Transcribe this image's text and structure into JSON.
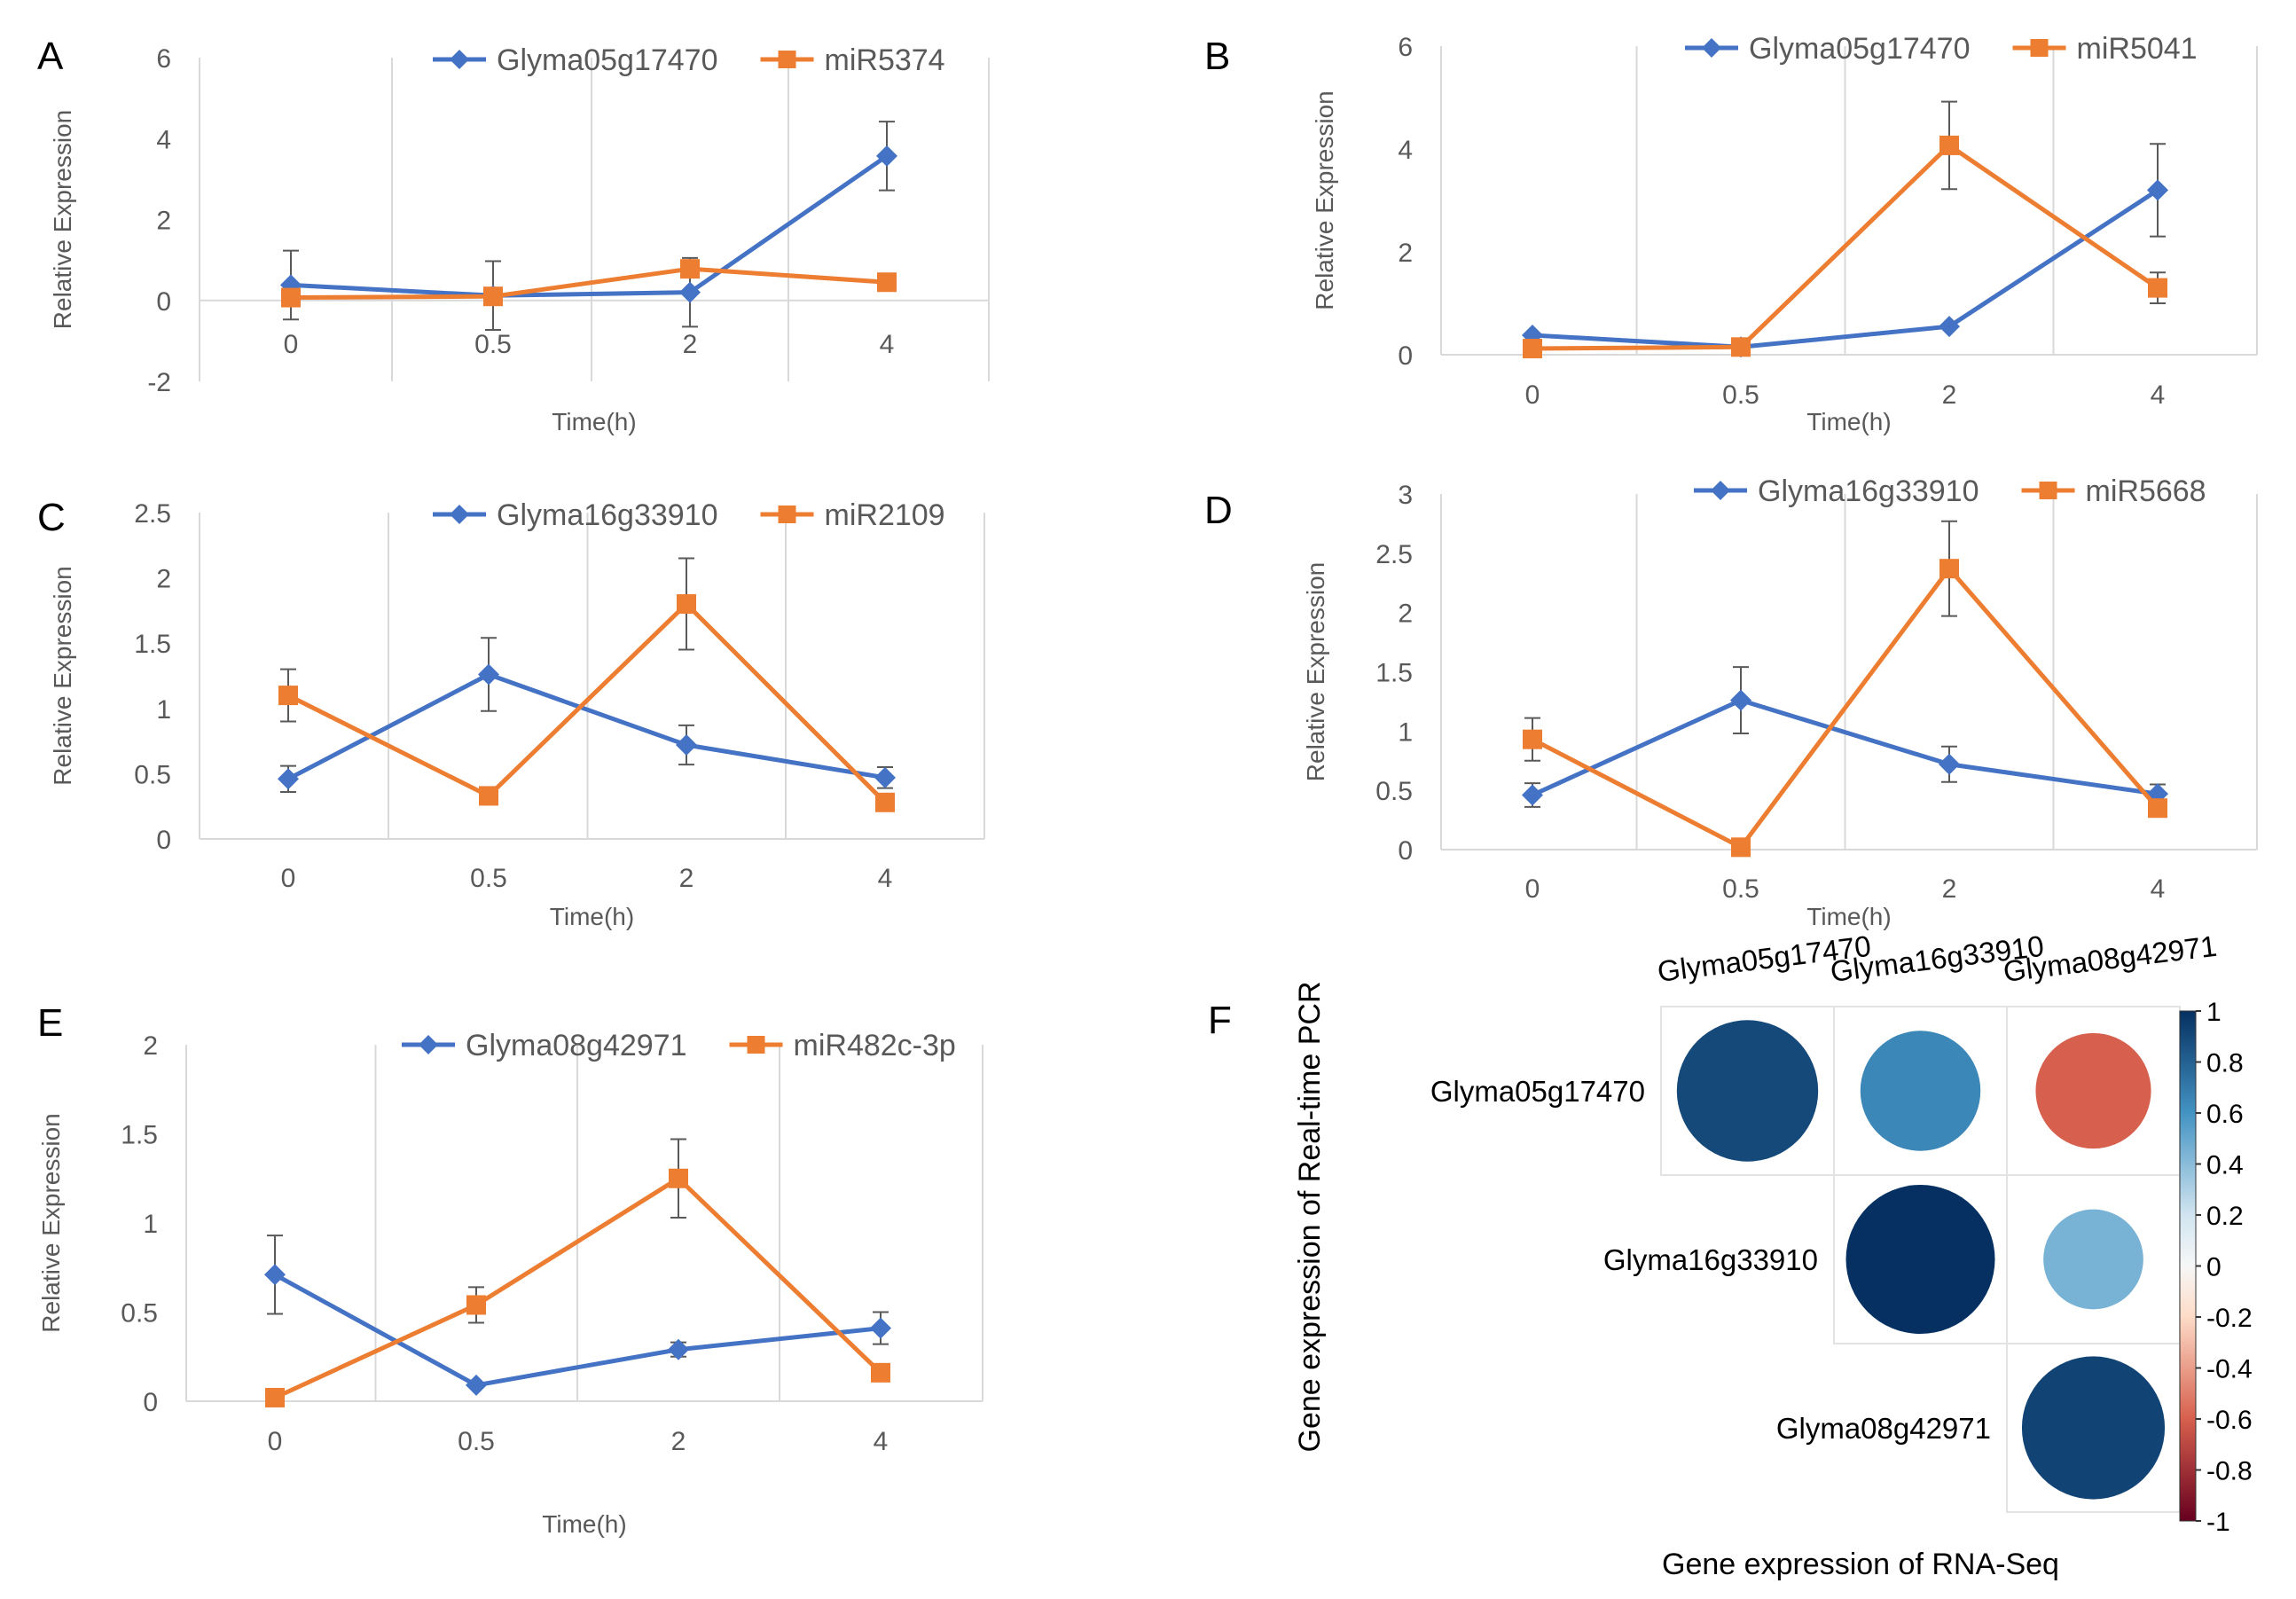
{
  "figure": {
    "panel_letters": [
      "A",
      "B",
      "C",
      "D",
      "E",
      "F"
    ]
  },
  "colors": {
    "blue": "#4472C4",
    "orange": "#ED7D31",
    "grid": "#D9D9D9",
    "axis_text": "#595959"
  },
  "chart_data": [
    {
      "panel": "A",
      "type": "line",
      "categories": [
        "0",
        "0.5",
        "2",
        "4"
      ],
      "xlabel": "Time(h)",
      "ylabel": "Relative Expression",
      "ylim": [
        -2,
        6
      ],
      "yticks": [
        "-2",
        "0",
        "2",
        "4",
        "6"
      ],
      "series": [
        {
          "name": "Glyma05g17470",
          "values": [
            0.38,
            0.12,
            0.2,
            3.57
          ],
          "errors": [
            0.85,
            0.85,
            0.85,
            0.85
          ]
        },
        {
          "name": "miR5374",
          "values": [
            0.07,
            0.1,
            0.78,
            0.45
          ],
          "errors": [
            0.0,
            0.0,
            0.0,
            0.0
          ]
        }
      ]
    },
    {
      "panel": "B",
      "type": "line",
      "categories": [
        "0",
        "0.5",
        "2",
        "4"
      ],
      "xlabel": "Time(h)",
      "ylabel": "Relative Expression",
      "ylim": [
        0,
        6
      ],
      "yticks": [
        "0",
        "2",
        "4",
        "6"
      ],
      "series": [
        {
          "name": "Glyma05g17470",
          "values": [
            0.38,
            0.15,
            0.55,
            3.2
          ],
          "errors": [
            0.0,
            0.0,
            0.0,
            0.9
          ]
        },
        {
          "name": "miR5041",
          "values": [
            0.12,
            0.15,
            4.07,
            1.3
          ],
          "errors": [
            0.0,
            0.0,
            0.85,
            0.3
          ]
        }
      ]
    },
    {
      "panel": "C",
      "type": "line",
      "categories": [
        "0",
        "0.5",
        "2",
        "4"
      ],
      "xlabel": "Time(h)",
      "ylabel": "Relative Expression",
      "ylim": [
        0,
        2.5
      ],
      "yticks": [
        "0",
        "0.5",
        "1",
        "1.5",
        "2",
        "2.5"
      ],
      "series": [
        {
          "name": "Glyma16g33910",
          "values": [
            0.46,
            1.26,
            0.72,
            0.47
          ],
          "errors": [
            0.1,
            0.28,
            0.15,
            0.08
          ]
        },
        {
          "name": "miR2109",
          "values": [
            1.1,
            0.33,
            1.8,
            0.28
          ],
          "errors": [
            0.2,
            0.0,
            0.35,
            0.0
          ]
        }
      ]
    },
    {
      "panel": "D",
      "type": "line",
      "categories": [
        "0",
        "0.5",
        "2",
        "4"
      ],
      "xlabel": "Time(h)",
      "ylabel": "Relative Expression",
      "ylim": [
        0,
        3
      ],
      "yticks": [
        "0",
        "0.5",
        "1",
        "1.5",
        "2",
        "2.5",
        "3"
      ],
      "series": [
        {
          "name": "Glyma16g33910",
          "values": [
            0.46,
            1.26,
            0.72,
            0.47
          ],
          "errors": [
            0.1,
            0.28,
            0.15,
            0.08
          ]
        },
        {
          "name": "miR5668",
          "values": [
            0.93,
            0.02,
            2.37,
            0.35
          ],
          "errors": [
            0.18,
            0.0,
            0.4,
            0.0
          ]
        }
      ]
    },
    {
      "panel": "E",
      "type": "line",
      "categories": [
        "0",
        "0.5",
        "2",
        "4"
      ],
      "xlabel": "Time(h)",
      "ylabel": "Relative Expression",
      "ylim": [
        0,
        2
      ],
      "yticks": [
        "0",
        "0.5",
        "1",
        "1.5",
        "2"
      ],
      "series": [
        {
          "name": "Glyma08g42971",
          "values": [
            0.71,
            0.09,
            0.29,
            0.41
          ],
          "errors": [
            0.22,
            0.0,
            0.04,
            0.09
          ]
        },
        {
          "name": "miR482c-3p",
          "values": [
            0.02,
            0.54,
            1.25,
            0.16
          ],
          "errors": [
            0.0,
            0.1,
            0.22,
            0.0
          ]
        }
      ]
    },
    {
      "panel": "F",
      "type": "heatmap",
      "style": "correlation-circles-upper-triangle",
      "xlabel": "Gene expression of RNA-Seq",
      "ylabel": "Gene expression of Real-time PCR",
      "columns": [
        "Glyma05g17470",
        "Glyma16g33910",
        "Glyma08g42971"
      ],
      "rows": [
        "Glyma05g17470",
        "Glyma16g33910",
        "Glyma08g42971"
      ],
      "cells": [
        {
          "row": 0,
          "col": 0,
          "value": 0.9
        },
        {
          "row": 0,
          "col": 1,
          "value": 0.65
        },
        {
          "row": 0,
          "col": 2,
          "value": -0.6
        },
        {
          "row": 1,
          "col": 1,
          "value": 1.0
        },
        {
          "row": 1,
          "col": 2,
          "value": 0.45
        },
        {
          "row": 2,
          "col": 2,
          "value": 0.92
        }
      ],
      "colorbar": {
        "min": -1,
        "max": 1,
        "ticks": [
          "1",
          "0.8",
          "0.6",
          "0.4",
          "0.2",
          "0",
          "-0.2",
          "-0.4",
          "-0.6",
          "-0.8",
          "-1"
        ]
      }
    }
  ]
}
